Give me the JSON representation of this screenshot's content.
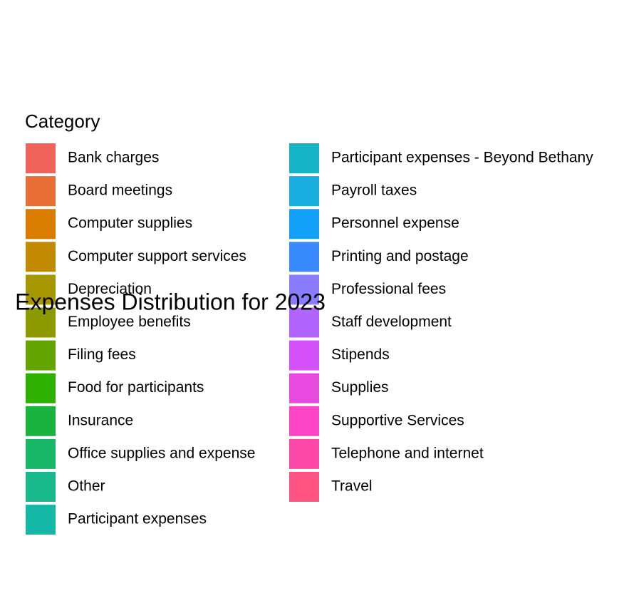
{
  "chart_data": {
    "type": "pie",
    "title": "Expenses Distribution for 2023",
    "legend_title": "Category",
    "categories": [
      "Bank charges",
      "Board meetings",
      "Computer supplies",
      "Computer support services",
      "Depreciation",
      "Employee benefits",
      "Filing fees",
      "Food for participants",
      "Insurance",
      "Office supplies and expense",
      "Other",
      "Participant expenses",
      "Participant expenses - Beyond Bethany",
      "Payroll taxes",
      "Personnel expense",
      "Printing and postage",
      "Professional fees",
      "Staff development",
      "Stipends",
      "Supplies",
      "Supportive Services",
      "Telephone and internet",
      "Travel"
    ],
    "colors": [
      "#F2635B",
      "#E86F36",
      "#D97C00",
      "#C28A00",
      "#A69700",
      "#8C9A00",
      "#63A400",
      "#2DB000",
      "#19B33F",
      "#19B868",
      "#19B88A",
      "#15B8A7",
      "#16B4C6",
      "#1AADE0",
      "#12A0F8",
      "#3A8AFF",
      "#8B7BFF",
      "#B264FF",
      "#D451FA",
      "#E84AE0",
      "#FC44C6",
      "#FE48A8",
      "#FF5383"
    ]
  }
}
